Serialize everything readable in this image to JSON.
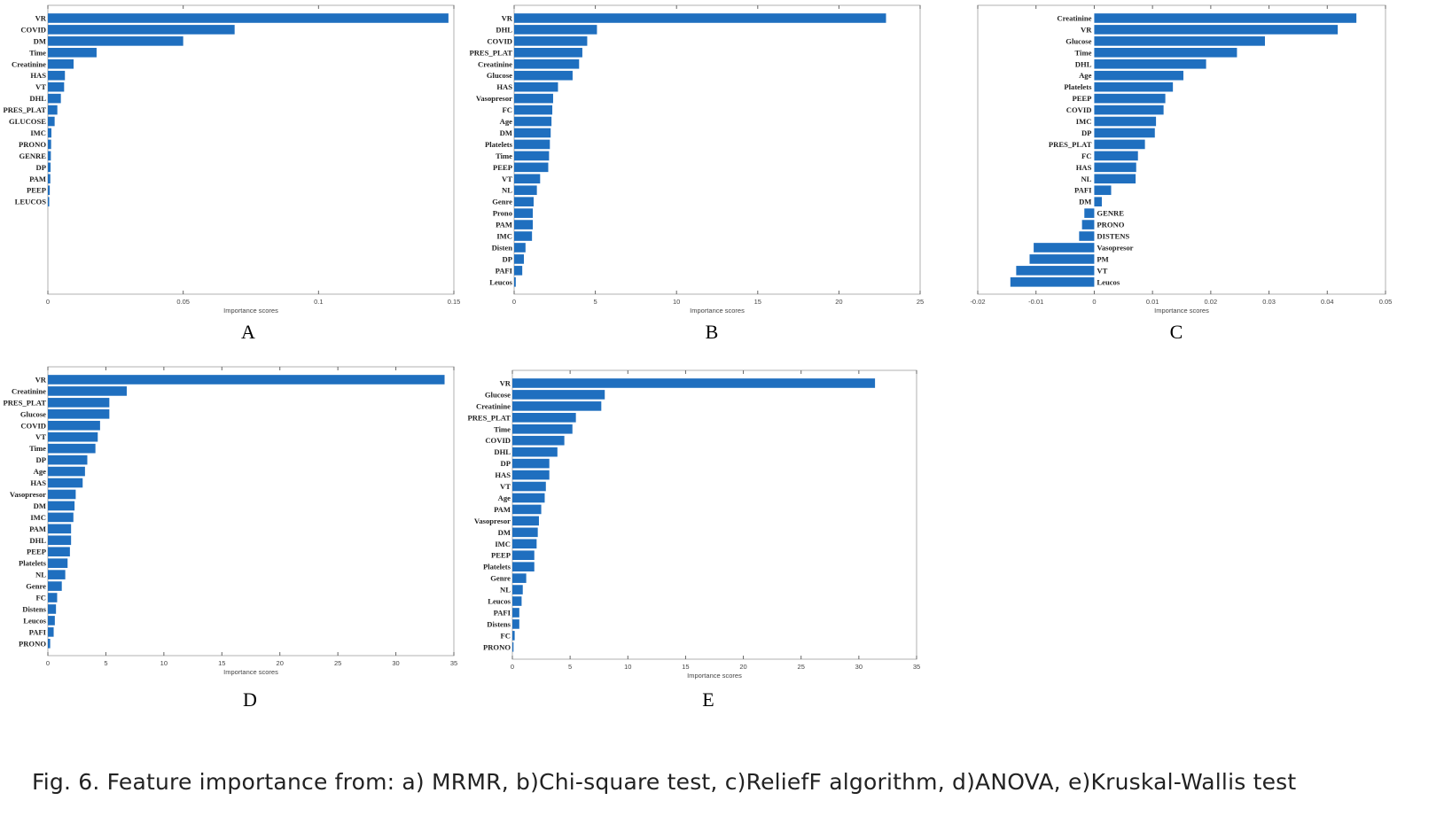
{
  "caption": "Fig. 6.    Feature importance from: a) MRMR, b)Chi-square test, c)ReliefF algorithm, d)ANOVA, e)Kruskal-Wallis test",
  "colors": {
    "bar": "#1f6fbf",
    "axis": "#666666",
    "text": "#222222"
  },
  "chart_data": [
    {
      "type": "bar",
      "orientation": "horizontal",
      "panel_label": "A",
      "xlabel": "Importance scores",
      "xlim": [
        0,
        0.15
      ],
      "xticks": [
        0,
        0.05,
        0.1,
        0.15
      ],
      "xtick_labels": [
        "0",
        "0.05",
        "0.1",
        "0.15"
      ],
      "categories": [
        "VR",
        "COVID",
        "DM",
        "Time",
        "Creatinine",
        "HAS",
        "VT",
        "DHL",
        "PRES_PLAT",
        "GLUCOSE",
        "IMC",
        "PRONO",
        "GENRE",
        "DP",
        "PAM",
        "PEEP",
        "LEUCOS"
      ],
      "values": [
        0.148,
        0.069,
        0.05,
        0.018,
        0.0095,
        0.0063,
        0.006,
        0.0048,
        0.0035,
        0.0025,
        0.0013,
        0.0012,
        0.0011,
        0.001,
        0.0009,
        0.0007,
        0.0005
      ]
    },
    {
      "type": "bar",
      "orientation": "horizontal",
      "panel_label": "B",
      "xlabel": "Importance scores",
      "xlim": [
        0,
        25
      ],
      "xticks": [
        0,
        5,
        10,
        15,
        20,
        25
      ],
      "xtick_labels": [
        "0",
        "5",
        "10",
        "15",
        "20",
        "25"
      ],
      "categories": [
        "VR",
        "DHL",
        "COVID",
        "PRES_PLAT",
        "Creatinine",
        "Glucose",
        "HAS",
        "Vasopresor",
        "FC",
        "Age",
        "DM",
        "Platelets",
        "Time",
        "PEEP",
        "VT",
        "NL",
        "Genre",
        "Prono",
        "PAM",
        "IMC",
        "Disten",
        "DP",
        "PAFI",
        "Leucos"
      ],
      "values": [
        22.9,
        5.1,
        4.5,
        4.2,
        4.0,
        3.6,
        2.7,
        2.4,
        2.35,
        2.3,
        2.25,
        2.2,
        2.15,
        2.1,
        1.6,
        1.4,
        1.2,
        1.15,
        1.15,
        1.1,
        0.7,
        0.6,
        0.5,
        0.1
      ]
    },
    {
      "type": "bar",
      "orientation": "horizontal",
      "panel_label": "C",
      "xlabel": "Importance scores",
      "xlim": [
        -0.02,
        0.05
      ],
      "xticks": [
        -0.02,
        -0.01,
        0,
        0.01,
        0.02,
        0.03,
        0.04,
        0.05
      ],
      "xtick_labels": [
        "-0.02",
        "-0.01",
        "0",
        "0.01",
        "0.02",
        "0.03",
        "0.04",
        "0.05"
      ],
      "categories": [
        "Creatinine",
        "VR",
        "Glucose",
        "Time",
        "DHL",
        "Age",
        "Platelets",
        "PEEP",
        "COVID",
        "IMC",
        "DP",
        "PRES_PLAT",
        "FC",
        "HAS",
        "NL",
        "PAFI",
        "DM",
        "GENRE",
        "PRONO",
        "DISTENS",
        "Vasopresor",
        "PM",
        "VT",
        "Leucos"
      ],
      "values": [
        0.045,
        0.0418,
        0.0293,
        0.0245,
        0.0192,
        0.0153,
        0.0135,
        0.0122,
        0.0119,
        0.0106,
        0.0104,
        0.0087,
        0.0075,
        0.0072,
        0.0071,
        0.0029,
        0.0013,
        -0.0017,
        -0.0021,
        -0.0026,
        -0.0104,
        -0.0111,
        -0.0134,
        -0.0144
      ]
    },
    {
      "type": "bar",
      "orientation": "horizontal",
      "panel_label": "D",
      "xlabel": "Importance scores",
      "xlim": [
        0,
        35
      ],
      "xticks": [
        0,
        5,
        10,
        15,
        20,
        25,
        30,
        35
      ],
      "xtick_labels": [
        "0",
        "5",
        "10",
        "15",
        "20",
        "25",
        "30",
        "35"
      ],
      "categories": [
        "VR",
        "Creatinine",
        "PRES_PLAT",
        "Glucose",
        "COVID",
        "VT",
        "Time",
        "DP",
        "Age",
        "HAS",
        "Vasopresor",
        "DM",
        "IMC",
        "PAM",
        "DHL",
        "PEEP",
        "Platelets",
        "NL",
        "Genre",
        "FC",
        "Distens",
        "Leucos",
        "PAFI",
        "PRONO"
      ],
      "values": [
        34.2,
        6.8,
        5.3,
        5.3,
        4.5,
        4.3,
        4.1,
        3.4,
        3.2,
        3.0,
        2.4,
        2.3,
        2.2,
        2.0,
        2.0,
        1.9,
        1.7,
        1.5,
        1.2,
        0.8,
        0.7,
        0.6,
        0.5,
        0.2
      ]
    },
    {
      "type": "bar",
      "orientation": "horizontal",
      "panel_label": "E",
      "xlabel": "Importance scores",
      "xlim": [
        0,
        35
      ],
      "xticks": [
        0,
        5,
        10,
        15,
        20,
        25,
        30,
        35
      ],
      "xtick_labels": [
        "0",
        "5",
        "10",
        "15",
        "20",
        "25",
        "30",
        "35"
      ],
      "categories": [
        "VR",
        "Glucose",
        "Creatinine",
        "PRES_PLAT",
        "Time",
        "COVID",
        "DHL",
        "DP",
        "HAS",
        "VT",
        "Age",
        "PAM",
        "Vasopresor",
        "DM",
        "IMC",
        "PEEP",
        "Platelets",
        "Genre",
        "NL",
        "Leucos",
        "PAFI",
        "Distens",
        "FC",
        "PRONO"
      ],
      "values": [
        31.4,
        8.0,
        7.7,
        5.5,
        5.2,
        4.5,
        3.9,
        3.2,
        3.2,
        2.9,
        2.8,
        2.5,
        2.3,
        2.2,
        2.1,
        1.9,
        1.9,
        1.2,
        0.9,
        0.8,
        0.6,
        0.6,
        0.2,
        0.1
      ]
    }
  ]
}
